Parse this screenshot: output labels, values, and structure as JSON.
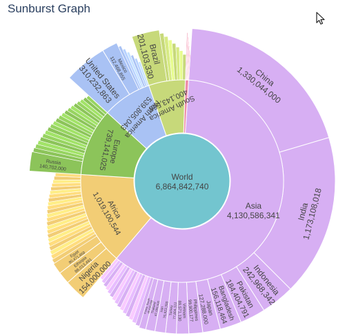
{
  "title": "Sunburst Graph",
  "icons": {
    "cursor": "mouse-pointer-icon"
  },
  "chart_data": {
    "type": "sunburst",
    "title": "Sunburst Graph",
    "root": {
      "name": "World",
      "value": 6864842740,
      "value_label": "6,864,842,740",
      "color": "#73c5cf"
    },
    "continents": [
      {
        "name": "Asia",
        "value": 4130586341,
        "value_label": "4,130,586,341",
        "color": "#d7aff3"
      },
      {
        "name": "Africa",
        "value": 1019100544,
        "value_label": "1,019,100,544",
        "color": "#f2cd75"
      },
      {
        "name": "Europe",
        "value": 739141025,
        "value_label": "739,141,025",
        "color": "#8cc45a"
      },
      {
        "name": "North America",
        "value": 539805043,
        "value_label": "539,805,043",
        "color": "#a9c2f4"
      },
      {
        "name": "South America",
        "value": 400143568,
        "value_label": "400,143,568",
        "color": "#c7d97a"
      },
      {
        "name": "",
        "value": 36066219,
        "value_label": "",
        "color": "#ee8ea9"
      }
    ],
    "countries": [
      {
        "parent": "Asia",
        "name": "China",
        "value": 1330044000,
        "value_label": "1,330,044,000",
        "label_size": 12
      },
      {
        "parent": "Asia",
        "name": "India",
        "value": 1173108018,
        "value_label": "1,173,108,018",
        "label_size": 12
      },
      {
        "parent": "Asia",
        "name": "Indonesia",
        "value": 242968342,
        "value_label": "242,968,342",
        "label_size": 12
      },
      {
        "parent": "Asia",
        "name": "Pakistan",
        "value": 184404791,
        "value_label": "184,404,791",
        "label_size": 11
      },
      {
        "parent": "Asia",
        "name": "Bangladesh",
        "value": 156118464,
        "value_label": "156,118,464",
        "label_size": 10
      },
      {
        "parent": "Asia",
        "name": "Japan",
        "value": 127288000,
        "value_label": "127,288,000",
        "label_size": 8
      },
      {
        "parent": "Asia",
        "name": "Philippines",
        "value": 99900177,
        "value_label": "99,900,177",
        "label_size": 6.5
      },
      {
        "parent": "Asia",
        "name": "Vietnam",
        "value": 89571130,
        "value_label": "89,571,130",
        "label_size": 6
      },
      {
        "parent": "Asia",
        "name": "Turkey",
        "value": 77804122,
        "value_label": "77,804,122",
        "label_size": 5
      },
      {
        "parent": "Asia",
        "name": "Iran",
        "value": 76923300,
        "value_label": "76,923,300",
        "label_size": 5
      },
      {
        "parent": "Asia",
        "name": "Thailand",
        "value": 67089500,
        "value_label": "67,089,500",
        "label_size": 4.5
      },
      {
        "parent": "Asia",
        "name": "Korea, South",
        "value": 48636068,
        "value_label": "48,636,068",
        "label_size": 4
      },
      {
        "parent": "Asia",
        "name": "",
        "value": 456930429,
        "value_label": "",
        "label_size": 0
      },
      {
        "parent": "Africa",
        "name": "Nigeria",
        "value": 154000000,
        "value_label": "154,000,000",
        "label_size": 11
      },
      {
        "parent": "Africa",
        "name": "Ethiopia",
        "value": 88013491,
        "value_label": "88,013,491",
        "label_size": 6
      },
      {
        "parent": "Africa",
        "name": "Egypt",
        "value": 80471869,
        "value_label": "80,471,869",
        "label_size": 5.5
      },
      {
        "parent": "Africa",
        "name": "",
        "value": 696615184,
        "value_label": "",
        "label_size": 0
      },
      {
        "parent": "Europe",
        "name": "Russia",
        "value": 140702000,
        "value_label": "140,702,000",
        "label_size": 7
      },
      {
        "parent": "Europe",
        "name": "",
        "value": 598439025,
        "value_label": "",
        "label_size": 0
      },
      {
        "parent": "North America",
        "name": "United States",
        "value": 310232863,
        "value_label": "310,232,863",
        "label_size": 12
      },
      {
        "parent": "North America",
        "name": "Mexico",
        "value": 112468855,
        "value_label": "112,468,855",
        "label_size": 7
      },
      {
        "parent": "North America",
        "name": "",
        "value": 117103325,
        "value_label": "",
        "label_size": 0
      },
      {
        "parent": "South America",
        "name": "Brazil",
        "value": 201103330,
        "value_label": "201,103,330",
        "label_size": 12
      },
      {
        "parent": "South America",
        "name": "",
        "value": 199040238,
        "value_label": "",
        "label_size": 0
      },
      {
        "parent": "",
        "name": "",
        "value": 36066219,
        "value_label": "",
        "label_size": 0
      }
    ]
  }
}
